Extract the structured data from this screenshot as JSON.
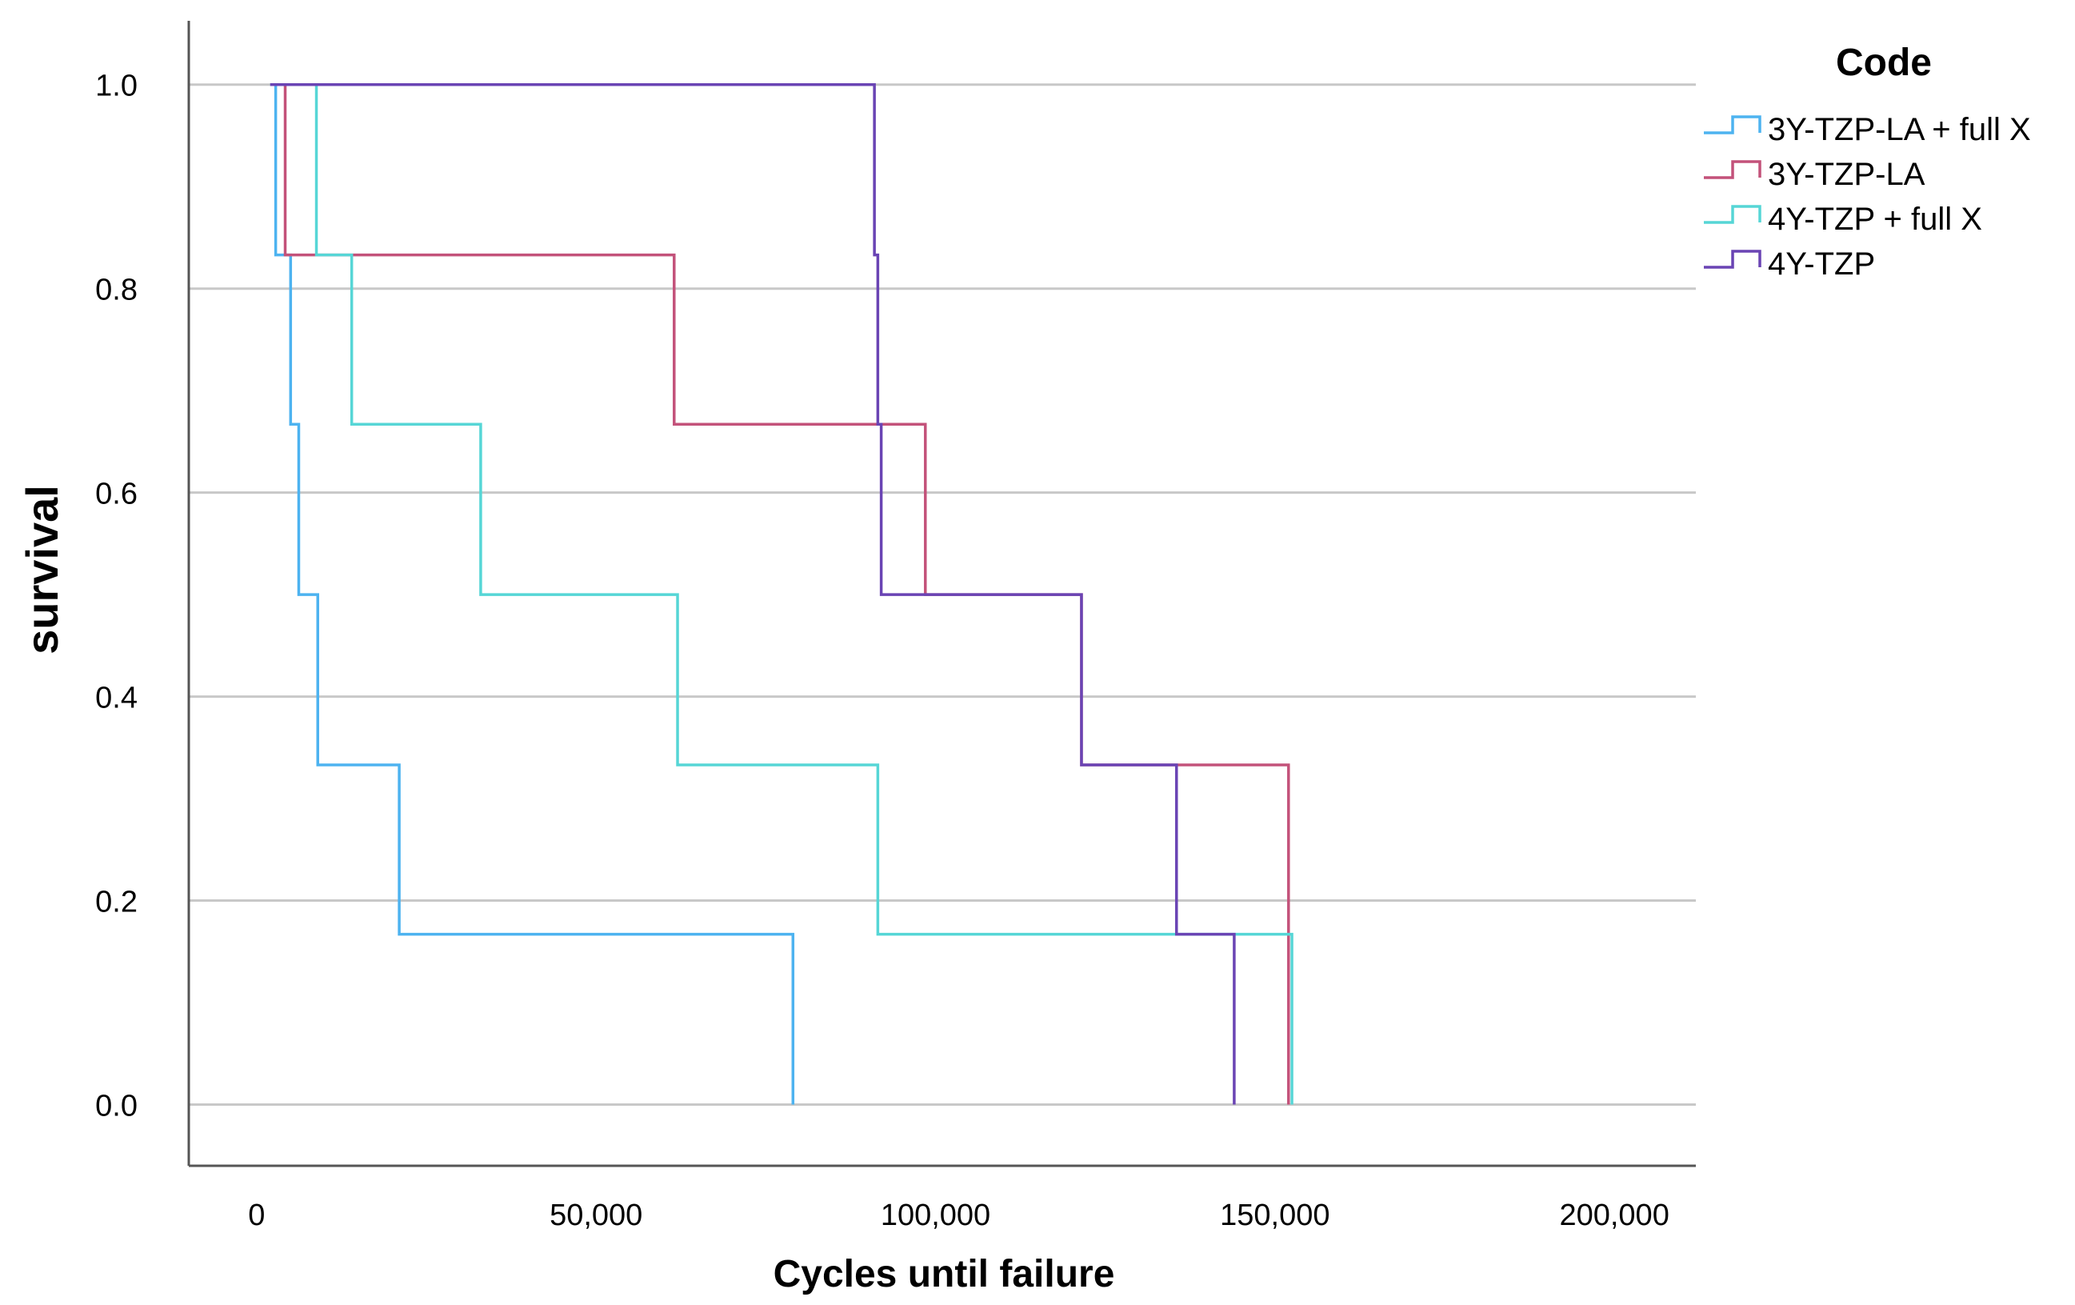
{
  "chart_data": {
    "type": "line",
    "step": true,
    "xlabel": "Cycles until failure",
    "ylabel": "survival",
    "xlim": [
      -10000,
      212000
    ],
    "ylim": [
      -0.06,
      1.05
    ],
    "x_ticks": [
      0,
      50000,
      100000,
      150000,
      200000
    ],
    "x_tick_labels": [
      "0",
      "50,000",
      "100,000",
      "150,000",
      "200,000"
    ],
    "y_ticks": [
      0.0,
      0.2,
      0.4,
      0.6,
      0.8,
      1.0
    ],
    "y_tick_labels": [
      "0.0",
      "0.2",
      "0.4",
      "0.6",
      "0.8",
      "1.0"
    ],
    "grid": "horizontal",
    "legend": {
      "title": "Code",
      "position": "top-right, outside plot"
    },
    "series": [
      {
        "name": "3Y-TZP-LA + full X",
        "color": "#4DB3F0",
        "points": [
          [
            2000,
            1.0
          ],
          [
            2800,
            0.833
          ],
          [
            5000,
            0.667
          ],
          [
            6200,
            0.5
          ],
          [
            9000,
            0.333
          ],
          [
            21000,
            0.167
          ],
          [
            79000,
            0.0
          ]
        ]
      },
      {
        "name": "3Y-TZP-LA",
        "color": "#C3527A",
        "points": [
          [
            2000,
            1.0
          ],
          [
            4200,
            0.833
          ],
          [
            61500,
            0.667
          ],
          [
            98500,
            0.5
          ],
          [
            121500,
            0.333
          ],
          [
            152000,
            0.0
          ]
        ]
      },
      {
        "name": "4Y-TZP + full X",
        "color": "#56D6D6",
        "points": [
          [
            2000,
            1.0
          ],
          [
            8800,
            0.833
          ],
          [
            14000,
            0.667
          ],
          [
            33000,
            0.5
          ],
          [
            62000,
            0.333
          ],
          [
            91500,
            0.167
          ],
          [
            152500,
            0.0
          ]
        ]
      },
      {
        "name": "4Y-TZP",
        "color": "#6A44B4",
        "points": [
          [
            2000,
            1.0
          ],
          [
            91000,
            0.833
          ],
          [
            91500,
            0.667
          ],
          [
            92000,
            0.5
          ],
          [
            121500,
            0.333
          ],
          [
            135500,
            0.167
          ],
          [
            144000,
            0.0
          ]
        ]
      }
    ]
  }
}
